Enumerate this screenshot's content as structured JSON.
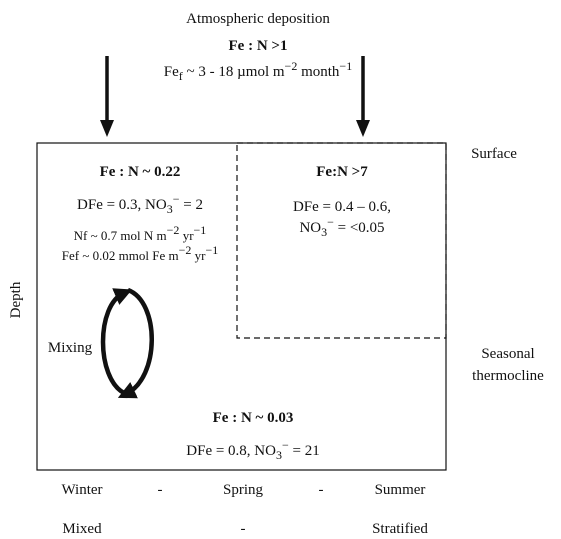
{
  "header": {
    "title": "Atmospheric deposition",
    "ratio": "Fe : N >1",
    "flux": [
      {
        "text": "Fe"
      },
      {
        "sub": "f"
      },
      {
        "text": " ~ 3 - 18 µmol m"
      },
      {
        "sup": "−2"
      },
      {
        "text": " month"
      },
      {
        "sup": "−1"
      }
    ]
  },
  "surface_layer": {
    "ratio": "Fe : N ~ 0.22",
    "concentrations": [
      {
        "text": "DFe = 0.3, NO"
      },
      {
        "sub": "3"
      },
      {
        "sup": "−"
      },
      {
        "text": " = 2"
      }
    ],
    "nitrogen_flux": [
      {
        "text": "Nf ~ 0.7 mol N m"
      },
      {
        "sup": "−2"
      },
      {
        "text": " yr"
      },
      {
        "sup": "−1"
      }
    ],
    "iron_flux": [
      {
        "text": "Fef ~ 0.02 mmol Fe m"
      },
      {
        "sup": "−2"
      },
      {
        "text": " yr"
      },
      {
        "sup": "−1"
      }
    ]
  },
  "stratified_layer": {
    "ratio": "Fe:N >7",
    "iron": "DFe = 0.4 – 0.6,",
    "nitrate": [
      {
        "text": "NO"
      },
      {
        "sub": "3"
      },
      {
        "sup": "−"
      },
      {
        "text": " = <0.05"
      }
    ]
  },
  "deep_layer": {
    "ratio": "Fe : N ~ 0.03",
    "concentrations": [
      {
        "text": "DFe = 0.8, NO"
      },
      {
        "sub": "3"
      },
      {
        "sup": "−"
      },
      {
        "text": " = 21"
      }
    ]
  },
  "labels": {
    "surface": "Surface",
    "thermocline": [
      "Seasonal",
      "thermocline"
    ],
    "depth": "Depth",
    "mixing": "Mixing"
  },
  "seasons": [
    "Winter",
    "-",
    "Spring",
    "-",
    "Summer"
  ],
  "regimes": [
    "Mixed",
    "-",
    "Stratified"
  ]
}
